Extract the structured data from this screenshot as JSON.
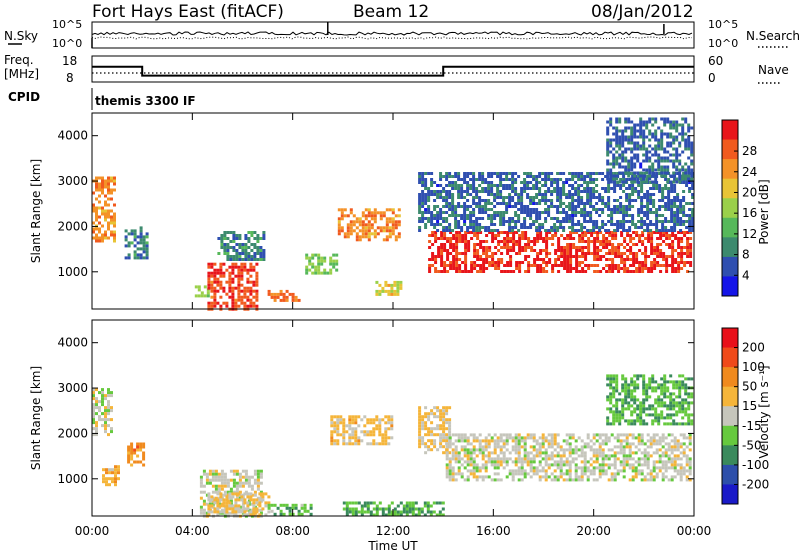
{
  "header": {
    "station": "Fort Hays East (fitACF)",
    "beam": "Beam 12",
    "date": "08/Jan/2012"
  },
  "top_panels": {
    "nsky_label": "N.Sky",
    "nsearch_label": "N.Search",
    "count_ticks": [
      "10^5",
      "10^0"
    ],
    "freq_label_1": "Freq.",
    "freq_label_2": "[MHz]",
    "freq_ticks": [
      "18",
      "8"
    ],
    "nave_label": "Nave",
    "nave_ticks": [
      "60",
      "0"
    ],
    "cpid_label": "CPID",
    "cpid_text": "themis 3300 IF"
  },
  "axes": {
    "ylabel": "Slant Range [km]",
    "xlabel": "Time UT",
    "y_ticks": [
      "1000",
      "2000",
      "3000",
      "4000"
    ],
    "x_ticks": [
      "00:00",
      "04:00",
      "08:00",
      "12:00",
      "16:00",
      "20:00",
      "00:00"
    ]
  },
  "colorbars": {
    "power": {
      "label": "Power [dB]",
      "ticks": [
        "4",
        "8",
        "12",
        "16",
        "20",
        "24",
        "28"
      ],
      "colors": [
        "#1515e8",
        "#2f4fb0",
        "#3c8a6e",
        "#56b85a",
        "#9ad04a",
        "#e8c436",
        "#f49228",
        "#f15a1e",
        "#e8151a"
      ]
    },
    "velocity": {
      "label": "Velocity [m s⁻¹]",
      "ticks": [
        "200",
        "100",
        "50",
        "15",
        "-15",
        "-50",
        "-100",
        "-200"
      ],
      "colors": [
        "#1a1ac8",
        "#2d4faa",
        "#3a8a5c",
        "#66c93e",
        "#c6c6bc",
        "#f5b53a",
        "#f08a1e",
        "#f04a1a",
        "#e8101a"
      ]
    }
  },
  "chart_data": {
    "type": "heatmap",
    "title": "Fort Hays East (fitACF)",
    "xlabel": "Time UT",
    "ylabel": "Slant Range [km]",
    "xlim": [
      0,
      24
    ],
    "ylim": [
      180,
      4500
    ],
    "panels": [
      {
        "name": "power",
        "colorbar_label": "Power [dB]",
        "clim": [
          0,
          30
        ],
        "echo_regions": [
          {
            "t0": 0.0,
            "t1": 0.9,
            "r0": 1700,
            "r1": 3100,
            "level": 22
          },
          {
            "t0": 1.3,
            "t1": 2.2,
            "r0": 1300,
            "r1": 2000,
            "level": 8
          },
          {
            "t0": 4.1,
            "t1": 4.6,
            "r0": 500,
            "r1": 700,
            "level": 14
          },
          {
            "t0": 4.6,
            "t1": 6.6,
            "r0": 200,
            "r1": 1200,
            "level": 26
          },
          {
            "t0": 5.0,
            "t1": 6.9,
            "r0": 1300,
            "r1": 1900,
            "level": 8
          },
          {
            "t0": 7.0,
            "t1": 8.2,
            "r0": 350,
            "r1": 600,
            "level": 24
          },
          {
            "t0": 8.5,
            "t1": 9.7,
            "r0": 1000,
            "r1": 1400,
            "level": 14
          },
          {
            "t0": 9.8,
            "t1": 12.3,
            "r0": 1700,
            "r1": 2400,
            "level": 22
          },
          {
            "t0": 11.3,
            "t1": 12.3,
            "r0": 500,
            "r1": 800,
            "level": 18
          },
          {
            "t0": 13.4,
            "t1": 23.9,
            "r0": 1000,
            "r1": 1900,
            "level": 27
          },
          {
            "t0": 13.0,
            "t1": 23.9,
            "r0": 1900,
            "r1": 3200,
            "level": 6
          },
          {
            "t0": 20.5,
            "t1": 23.9,
            "r0": 3000,
            "r1": 4400,
            "level": 6
          }
        ]
      },
      {
        "name": "velocity",
        "colorbar_label": "Velocity [m s⁻¹]",
        "clim": [
          -200,
          200
        ],
        "echo_regions": [
          {
            "t0": 0.0,
            "t1": 0.8,
            "r0": 2000,
            "r1": 3000,
            "level": 0
          },
          {
            "t0": 0.4,
            "t1": 1.0,
            "r0": 900,
            "r1": 1300,
            "level": 40
          },
          {
            "t0": 1.4,
            "t1": 2.1,
            "r0": 1300,
            "r1": 1800,
            "level": 80
          },
          {
            "t0": 4.3,
            "t1": 6.8,
            "r0": 200,
            "r1": 1200,
            "level": 0
          },
          {
            "t0": 4.6,
            "t1": 7.0,
            "r0": 200,
            "r1": 700,
            "level": 30
          },
          {
            "t0": 7.0,
            "t1": 8.7,
            "r0": 200,
            "r1": 450,
            "level": -50
          },
          {
            "t0": 9.5,
            "t1": 12.0,
            "r0": 1800,
            "r1": 2400,
            "level": 35
          },
          {
            "t0": 10.0,
            "t1": 14.0,
            "r0": 200,
            "r1": 500,
            "level": -60
          },
          {
            "t0": 13.0,
            "t1": 14.3,
            "r0": 1600,
            "r1": 2600,
            "level": 30
          },
          {
            "t0": 14.1,
            "t1": 23.9,
            "r0": 1000,
            "r1": 2000,
            "level": 0
          },
          {
            "t0": 20.5,
            "t1": 23.9,
            "r0": 2200,
            "r1": 3300,
            "level": -60
          }
        ]
      }
    ],
    "frequency_mhz": [
      {
        "t0": 0.0,
        "t1": 2.0,
        "value": 14
      },
      {
        "t0": 2.0,
        "t1": 14.0,
        "value": 10
      },
      {
        "t0": 14.0,
        "t1": 24.0,
        "value": 14
      }
    ],
    "cpid": "themis 3300 IF"
  }
}
